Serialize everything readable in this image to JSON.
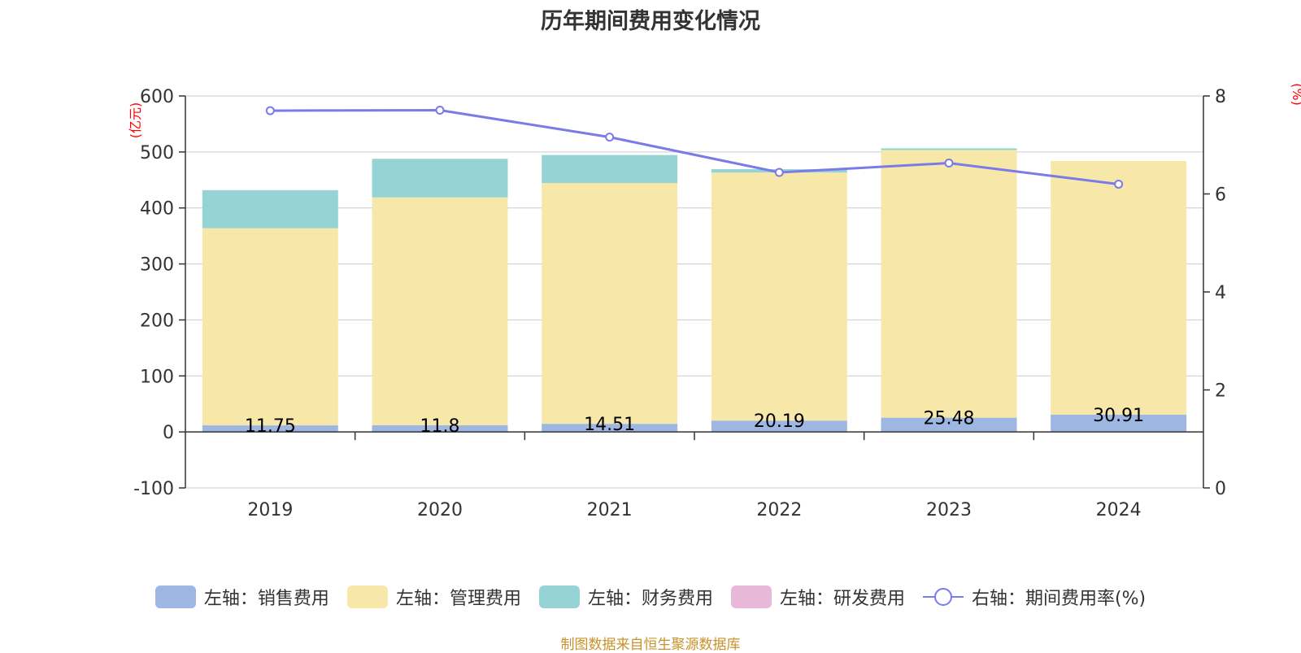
{
  "chart_data": {
    "type": "bar",
    "title": "历年期间费用变化情况",
    "categories": [
      "2019",
      "2020",
      "2021",
      "2022",
      "2023",
      "2024"
    ],
    "left_axis": {
      "unit_label": "(亿元)",
      "ylim": [
        -100,
        600
      ],
      "ticks": [
        "600",
        "500",
        "400",
        "300",
        "200",
        "100",
        "0",
        "-100"
      ]
    },
    "right_axis": {
      "unit_label": "(%)",
      "ylim": [
        0,
        8
      ],
      "ticks": [
        "8",
        "6",
        "4",
        "2",
        "0"
      ]
    },
    "series": [
      {
        "name": "左轴：销售费用",
        "type": "bar",
        "stack": true,
        "color": "#9db6e2",
        "values": [
          11.75,
          11.8,
          14.51,
          20.19,
          25.48,
          30.91
        ],
        "labels": [
          "11.75",
          "11.8",
          "14.51",
          "20.19",
          "25.48",
          "30.91"
        ]
      },
      {
        "name": "左轴：管理费用",
        "type": "bar",
        "stack": true,
        "color": "#f7e7a8",
        "values": [
          352,
          407,
          430,
          443,
          478,
          453
        ]
      },
      {
        "name": "左轴：财务费用",
        "type": "bar",
        "stack": true,
        "color": "#96d3d4",
        "values": [
          68,
          69,
          50,
          6,
          3,
          0
        ]
      },
      {
        "name": "左轴：研发费用",
        "type": "bar",
        "stack": true,
        "color": "#e8b8d8",
        "values": [
          0,
          0,
          0,
          0,
          0,
          0
        ]
      },
      {
        "name": "右轴：期间费用率(%)",
        "type": "line",
        "axis": "right",
        "color": "#7b7be8",
        "values": [
          7.7,
          7.71,
          7.16,
          6.44,
          6.63,
          6.2
        ]
      }
    ],
    "grid": true,
    "legend_position": "bottom"
  },
  "source_note": "制图数据来自恒生聚源数据库"
}
